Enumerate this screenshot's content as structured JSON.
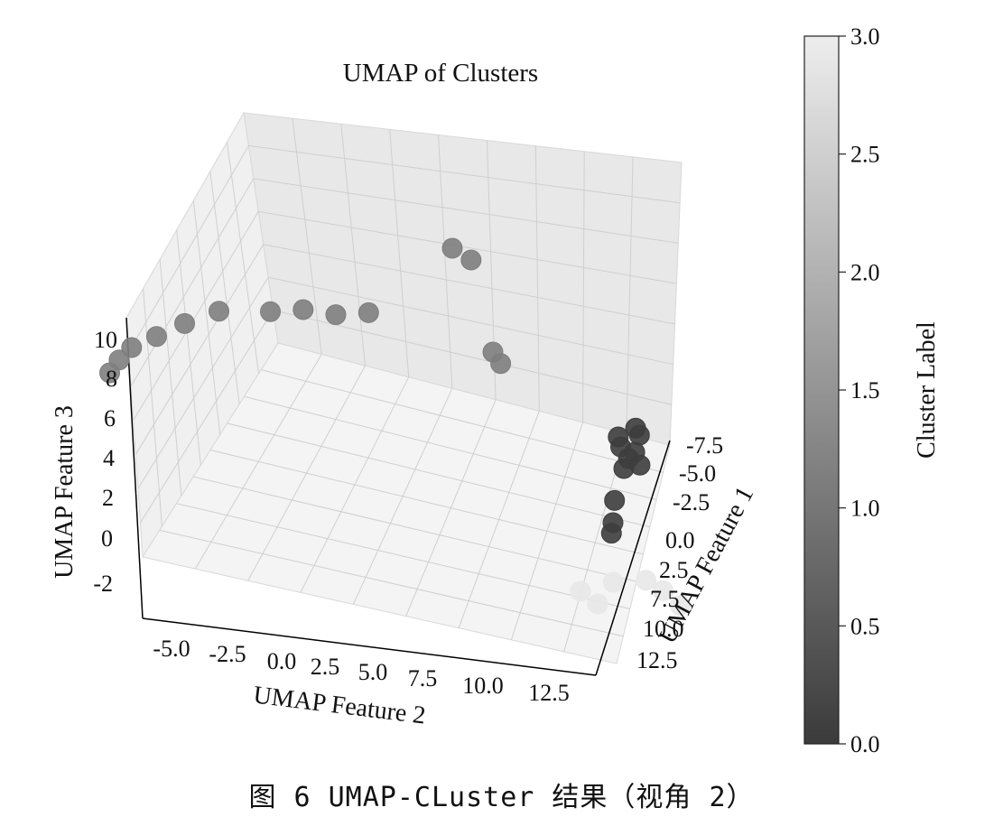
{
  "caption": "图 6  UMAP-CLuster 结果（视角 2）",
  "chart_data": {
    "type": "scatter",
    "projection": "3d",
    "title": "UMAP of Clusters",
    "xlabel": "UMAP Feature 1",
    "ylabel": "UMAP Feature 2",
    "zlabel": "UMAP Feature 3",
    "x_ticks": [
      "-7.5",
      "-5.0",
      "-2.5",
      "0.0",
      "2.5",
      "7.5",
      "10.0",
      "12.5"
    ],
    "y_ticks": [
      "-5.0",
      "-2.5",
      "0.0",
      "2.5",
      "5.0",
      "7.5",
      "10.0",
      "12.5"
    ],
    "z_ticks": [
      "10",
      "8",
      "6",
      "4",
      "2",
      "0",
      "-2"
    ],
    "grid": true,
    "colorbar": {
      "label": "Cluster Label",
      "range": [
        0.0,
        3.0
      ],
      "ticks": [
        "3.0",
        "2.5",
        "2.0",
        "1.5",
        "1.0",
        "0.5",
        "0.0"
      ],
      "colormap": "grey",
      "color_low": "#3b3b3b",
      "color_high": "#ededed"
    },
    "series": [
      {
        "cluster": 0,
        "color": "#3d3d3d",
        "points": [
          [
            -1.0,
            11.0,
            4.5
          ],
          [
            -1.5,
            11.2,
            5.0
          ],
          [
            -2.0,
            11.0,
            5.5
          ],
          [
            -1.0,
            11.5,
            6.0
          ],
          [
            -0.5,
            11.3,
            5.2
          ],
          [
            -1.8,
            11.6,
            4.8
          ],
          [
            -0.8,
            10.8,
            5.8
          ],
          [
            -1.2,
            11.4,
            6.3
          ],
          [
            0.0,
            10.6,
            3.0
          ],
          [
            0.5,
            10.5,
            2.0
          ],
          [
            1.0,
            10.4,
            1.5
          ]
        ]
      },
      {
        "cluster": 1,
        "color": "#7e7e7e",
        "points": [
          [
            -6.0,
            -5.0,
            6.5
          ],
          [
            -5.0,
            -4.8,
            7.0
          ],
          [
            -4.0,
            -4.5,
            7.5
          ],
          [
            -3.0,
            -3.8,
            8.0
          ],
          [
            -2.0,
            -3.0,
            8.6
          ],
          [
            -1.0,
            -2.0,
            9.2
          ],
          [
            0.5,
            -0.5,
            9.3
          ],
          [
            1.0,
            0.5,
            9.5
          ],
          [
            1.5,
            1.5,
            9.4
          ],
          [
            2.0,
            2.5,
            9.6
          ],
          [
            -6.0,
            6.0,
            13.5
          ],
          [
            -5.0,
            6.5,
            13.0
          ],
          [
            -3.0,
            7.0,
            9.0
          ],
          [
            -2.5,
            7.2,
            8.5
          ]
        ]
      },
      {
        "cluster": 3,
        "color": "#e8e8e8",
        "points": [
          [
            5.0,
            9.0,
            -1.5
          ],
          [
            5.5,
            10.0,
            -1.0
          ],
          [
            6.0,
            11.0,
            -0.8
          ],
          [
            6.5,
            11.5,
            -1.2
          ],
          [
            7.0,
            12.0,
            -1.8
          ],
          [
            5.5,
            9.5,
            -2.0
          ]
        ]
      }
    ]
  }
}
